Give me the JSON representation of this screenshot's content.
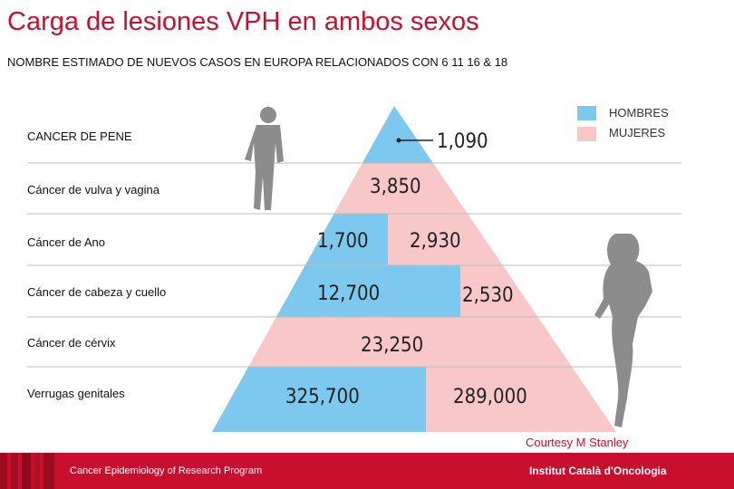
{
  "title": "Carga de lesiones VPH en ambos sexos",
  "subtitle": "NOMBRE ESTIMADO DE NUEVOS CASOS EN EUROPA RELACIONADOS CON  6 11 16 & 18",
  "courtesy": "Courtesy M Stanley",
  "footer": {
    "left": "Cancer Epidemiology of Research Program",
    "right": "Institut Català d'Oncologia"
  },
  "colors": {
    "men": "#7dc8ef",
    "women": "#f8c8c9",
    "title": "#c8102e",
    "figure": "#8c8c8c"
  },
  "chart_data": {
    "type": "bar",
    "orientation": "horizontal stacked pyramid",
    "legend_position": "top-right",
    "categories": [
      "CANCER DE PENE",
      "Cáncer de vulva y vagina",
      "Cáncer de Ano",
      "Cáncer de cabeza y cuello",
      "Cáncer de cérvix",
      "Verrugas genitales"
    ],
    "series": [
      {
        "name": "HOMBRES",
        "values": [
          1090,
          0,
          1700,
          12700,
          0,
          325700
        ],
        "labels": [
          "1,090",
          "",
          "1,700",
          "12,700",
          "",
          "325,700"
        ]
      },
      {
        "name": "MUJERES",
        "values": [
          0,
          3850,
          2930,
          2530,
          23250,
          289000
        ],
        "labels": [
          "",
          "3,850",
          "2,930",
          "2,530",
          "23,250",
          "289,000"
        ]
      }
    ]
  }
}
